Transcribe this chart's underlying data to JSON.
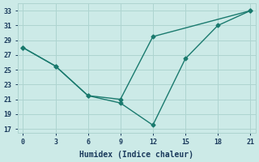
{
  "line1_x": [
    0,
    3,
    6,
    9,
    12,
    15,
    18,
    21
  ],
  "line1_y": [
    28,
    25.5,
    21.5,
    20.5,
    17.5,
    26.5,
    31,
    33
  ],
  "line2_x": [
    0,
    3,
    6,
    9,
    12,
    21
  ],
  "line2_y": [
    28,
    25.5,
    21.5,
    21,
    29.5,
    33
  ],
  "line_color": "#1a7a6e",
  "bg_color": "#cceae7",
  "grid_color": "#aed4d0",
  "xlabel": "Humidex (Indice chaleur)",
  "xlim": [
    -0.5,
    21.5
  ],
  "ylim": [
    16.5,
    34
  ],
  "xticks": [
    0,
    3,
    6,
    9,
    12,
    15,
    18,
    21
  ],
  "yticks": [
    17,
    19,
    21,
    23,
    25,
    27,
    29,
    31,
    33
  ],
  "font_color": "#1a3a5c",
  "marker": "D",
  "marker_size": 2.5,
  "linewidth": 1.0
}
